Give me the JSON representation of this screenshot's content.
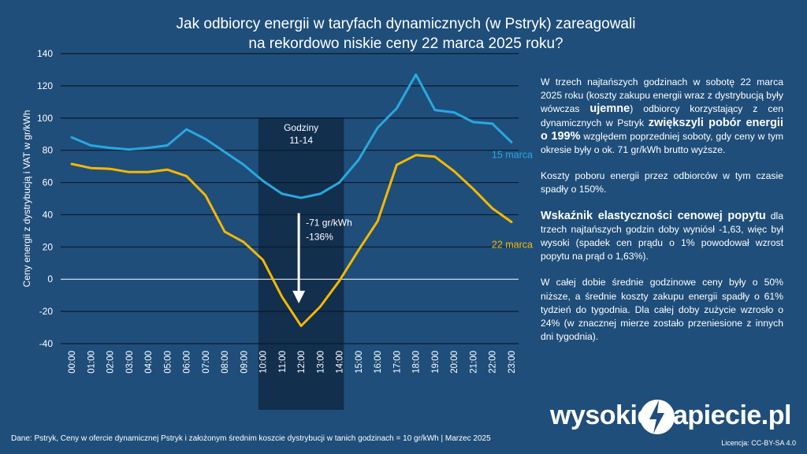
{
  "title_line1": "Jak odbiorcy energii w taryfach dynamicznych (w Pstryk) zareagowali",
  "title_line2": "na rekordowo niskie ceny 22 marca 2025 roku?",
  "chart_data": {
    "type": "line",
    "ylabel": "Ceny energii z dystrybucją i VAT w gr/kWh",
    "ylim": [
      -40,
      140
    ],
    "yticks": [
      -40,
      -20,
      0,
      20,
      40,
      60,
      80,
      100,
      120,
      140
    ],
    "categories": [
      "00:00",
      "01:00",
      "02:00",
      "03:00",
      "04:00",
      "05:00",
      "06:00",
      "07:00",
      "08:00",
      "09:00",
      "10:00",
      "11:00",
      "12:00",
      "13:00",
      "14:00",
      "15:00",
      "16:00",
      "17:00",
      "18:00",
      "19:00",
      "20:00",
      "21:00",
      "22:00",
      "23:00"
    ],
    "grid": true,
    "series": [
      {
        "name": "15 marca",
        "color": "#29a8e0",
        "values": [
          88,
          83,
          81.5,
          80.5,
          81.5,
          83,
          93,
          87,
          79,
          71,
          61,
          53,
          50.5,
          53,
          60,
          74,
          94,
          106,
          127,
          105,
          103.5,
          97.5,
          96.5,
          85
        ]
      },
      {
        "name": "22 marca",
        "color": "#f5b800",
        "values": [
          71.5,
          69,
          68.5,
          66.5,
          66.5,
          68,
          64,
          52,
          29.5,
          23,
          12,
          -11,
          -29,
          -17,
          -1,
          18,
          36,
          71,
          77,
          76,
          67,
          56,
          44,
          35.5
        ]
      }
    ],
    "highlight": {
      "from": "11:00",
      "to": "13:00",
      "label_line1": "Godziny",
      "label_line2": "11-14"
    },
    "annotation": {
      "line1": "-71 gr/kWh",
      "line2": "-136%",
      "from_value": 41,
      "to_value": -15,
      "at": "12:00"
    }
  },
  "side_text": {
    "p1_a": "W trzech najtańszych godzinach w sobotę 22 marca 2025 roku (koszty zakupu energii wraz z dystrybucją były wówczas ",
    "p1_b": "ujemne",
    "p1_c": ") odbiorcy korzystający z cen dynamicznych w Pstryk ",
    "p1_d": "zwiększyli pobór energii o 199%",
    "p1_e": " względem poprzedniej soboty, gdy ceny w tym okresie były o ok. 71 gr/kWh brutto wyższe.",
    "p2": "Koszty poboru energii przez odbiorców w tym czasie spadły o 150%.",
    "p3_a": "Wskaźnik elastyczności cenowej popytu",
    "p3_b": " dla trzech najtańszych godzin doby wyniósł -1,63, więc był wysoki (spadek cen prądu o 1% powodował wzrost popytu na prąd o 1,63%).",
    "p4": "W całej dobie średnie godzinowe ceny były o 50% niższe, a średnie koszty zakupu energii spadły o 61% tydzień do tygodnia. Dla całej doby zużycie wzrosło o 24% (w znacznej mierze zostało przeniesione z innych dni tygodnia)."
  },
  "footer": "Dane: Pstryk, Ceny w ofercie dynamicznej Pstryk i założonym średnim koszcie dystrybucji w tanich godzinach = 10 gr/kWh    |    Marzec 2025",
  "license": "Licencja: CC-BY-SA 4.0",
  "logo": {
    "left": "wysokie",
    "right": "apiecie.pl"
  }
}
